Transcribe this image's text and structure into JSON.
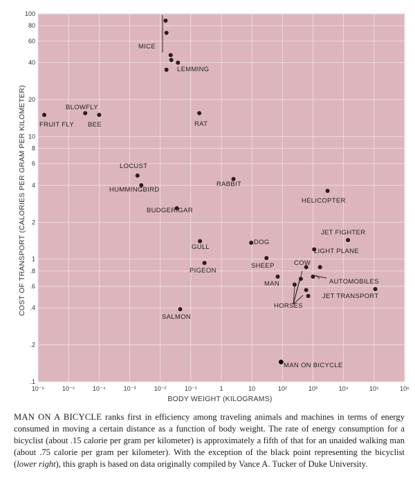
{
  "chart_data": {
    "type": "scatter",
    "xlabel": "BODY WEIGHT (KILOGRAMS)",
    "ylabel": "COST OF TRANSPORT (CALORIES PER GRAM PER KILOMETER)",
    "x_scale": "log",
    "y_scale": "log",
    "xlim": [
      1e-06,
      1000000.0
    ],
    "ylim": [
      0.1,
      100
    ],
    "grid": true,
    "x_ticks": [
      "10⁻⁶",
      "10⁻⁵",
      "10⁻⁴",
      "10⁻³",
      "10⁻²",
      "10⁻¹",
      "1",
      "10",
      "10²",
      "10³",
      "10⁴",
      "10⁵",
      "10⁶"
    ],
    "y_ticks": [
      {
        "v": 100,
        "label": "100"
      },
      {
        "v": 80,
        "label": "80"
      },
      {
        "v": 60,
        "label": "60"
      },
      {
        "v": 40,
        "label": "40"
      },
      {
        "v": 20,
        "label": "20"
      },
      {
        "v": 10,
        "label": "10"
      },
      {
        "v": 8,
        "label": "8"
      },
      {
        "v": 6,
        "label": "6"
      },
      {
        "v": 4,
        "label": "4"
      },
      {
        "v": 2,
        "label": "2"
      },
      {
        "v": 1,
        "label": "1"
      },
      {
        "v": 0.8,
        "label": ".8"
      },
      {
        "v": 0.6,
        "label": ".6"
      },
      {
        "v": 0.4,
        "label": ".4"
      },
      {
        "v": 0.2,
        "label": ".2"
      },
      {
        "v": 0.1,
        "label": ".1"
      }
    ],
    "points": [
      {
        "x": 1.6e-06,
        "y": 15
      },
      {
        "x": 3.5e-05,
        "y": 15.5
      },
      {
        "x": 0.0001,
        "y": 15
      },
      {
        "x": 0.015,
        "y": 88
      },
      {
        "x": 0.016,
        "y": 70
      },
      {
        "x": 0.022,
        "y": 46
      },
      {
        "x": 0.023,
        "y": 42
      },
      {
        "x": 0.038,
        "y": 40
      },
      {
        "x": 0.016,
        "y": 35
      },
      {
        "x": 0.19,
        "y": 15.5
      },
      {
        "x": 0.0018,
        "y": 4.8
      },
      {
        "x": 0.0024,
        "y": 4
      },
      {
        "x": 0.035,
        "y": 2.6
      },
      {
        "x": 2.5,
        "y": 4.5
      },
      {
        "x": 0.045,
        "y": 0.39
      },
      {
        "x": 0.2,
        "y": 1.4
      },
      {
        "x": 0.28,
        "y": 0.93
      },
      {
        "x": 9.5,
        "y": 1.36
      },
      {
        "x": 30,
        "y": 1.02
      },
      {
        "x": 70,
        "y": 0.72
      },
      {
        "x": 600,
        "y": 0.86
      },
      {
        "x": 250,
        "y": 0.62
      },
      {
        "x": 400,
        "y": 0.69
      },
      {
        "x": 600,
        "y": 0.56
      },
      {
        "x": 700,
        "y": 0.5
      },
      {
        "x": 1000,
        "y": 0.72
      },
      {
        "x": 1100,
        "y": 1.2
      },
      {
        "x": 3000,
        "y": 3.6
      },
      {
        "x": 14000,
        "y": 1.43
      },
      {
        "x": 1700,
        "y": 0.86
      },
      {
        "x": 110000,
        "y": 0.57
      },
      {
        "x": 90,
        "y": 0.145,
        "filled_black": true
      }
    ],
    "annotations": [
      "BLOWFLY",
      "FRUIT FLY",
      "BEE",
      "MICE",
      "LEMMING",
      "RAT",
      "LOCUST",
      "HUMMINGBIRD",
      "BUDGERIGAR",
      "RABBIT",
      "SALMON",
      "GULL",
      "PIGEON",
      "DOG",
      "SHEEP",
      "MAN",
      "COW",
      "HORSES",
      "LIGHT PLANE",
      "HELICOPTER",
      "JET FIGHTER",
      "AUTOMOBILES",
      "JET TRANSPORT",
      "MAN ON BICYCLE"
    ]
  },
  "caption": {
    "lead": "MAN ON A BICYCLE",
    "text_1": " ranks first in efficiency among traveling animals and machines in terms of energy consumed in moving a certain distance as a function of body weight. The rate of energy consumption for a bicyclist (about .15 calorie per gram per kilometer) is approximately a fifth of that for an unaided walking man (about .75 calorie per gram per kilometer). With the exception of the black point representing the bicyclist (",
    "em": "lower right",
    "text_2": "), this graph is based on data originally compiled by Vance A. Tucker of Duke University."
  },
  "colors": {
    "plot_bg": "#dcb6bc",
    "grid": "#f1dde0",
    "point": "#2a1d1f",
    "bicycle_point": "#000000"
  }
}
